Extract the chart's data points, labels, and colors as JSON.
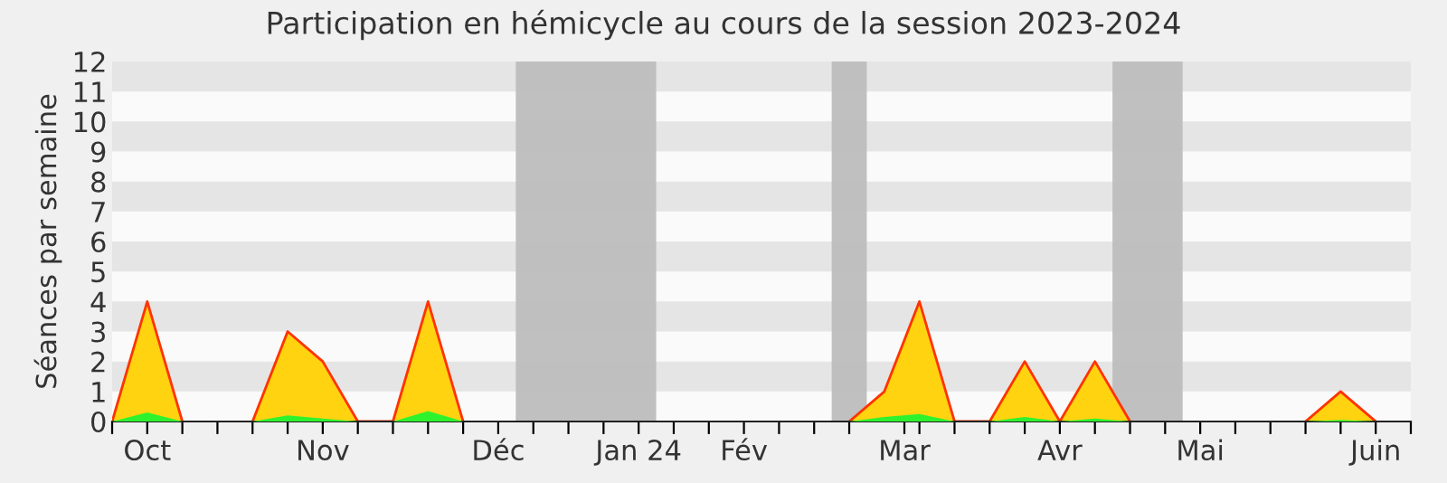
{
  "chart_data": {
    "type": "area",
    "title": "Participation en hémicycle au cours de la session 2023-2024",
    "ylabel": "Séances par semaine",
    "x": [
      "2023-09-25",
      "2023-10-02",
      "2023-10-09",
      "2023-10-16",
      "2023-10-23",
      "2023-10-30",
      "2023-11-06",
      "2023-11-13",
      "2023-11-20",
      "2023-11-27",
      "2023-12-04",
      "2023-12-11",
      "2023-12-18",
      "2023-12-25",
      "2024-01-01",
      "2024-01-08",
      "2024-01-15",
      "2024-01-22",
      "2024-01-29",
      "2024-02-05",
      "2024-02-12",
      "2024-02-19",
      "2024-02-26",
      "2024-03-04",
      "2024-03-11",
      "2024-03-18",
      "2024-03-25",
      "2024-04-01",
      "2024-04-08",
      "2024-04-15",
      "2024-04-22",
      "2024-04-29",
      "2024-05-06",
      "2024-05-13",
      "2024-05-20",
      "2024-05-27",
      "2024-06-03"
    ],
    "series": [
      {
        "color": "#ffd30f",
        "values": [
          0,
          4,
          0,
          null,
          0,
          3,
          2,
          0,
          0,
          4,
          0,
          null,
          null,
          null,
          null,
          null,
          null,
          null,
          null,
          null,
          null,
          0,
          1,
          4,
          0,
          0,
          2,
          0,
          2,
          0,
          null,
          null,
          null,
          null,
          0,
          1,
          0
        ]
      },
      {
        "color": "#2ef22e",
        "values": [
          0,
          0.3,
          0,
          null,
          0,
          0.2,
          0.1,
          0,
          0,
          0.35,
          0,
          null,
          null,
          null,
          null,
          null,
          null,
          null,
          null,
          null,
          null,
          0,
          0.15,
          0.25,
          0,
          0,
          0.15,
          0,
          0.1,
          0,
          null,
          null,
          null,
          null,
          0,
          0.05,
          0
        ]
      }
    ],
    "xlim": [
      "2023-09-25",
      "2024-06-10"
    ],
    "xticks": [
      {
        "value": "2023-09-25",
        "label": null
      },
      {
        "value": "2023-10-02",
        "label": "Oct"
      },
      {
        "value": "2023-10-09",
        "label": null
      },
      {
        "value": "2023-10-16",
        "label": null
      },
      {
        "value": "2023-10-23",
        "label": null
      },
      {
        "value": "2023-10-30",
        "label": null
      },
      {
        "value": "2023-11-06",
        "label": "Nov"
      },
      {
        "value": "2023-11-13",
        "label": null
      },
      {
        "value": "2023-11-20",
        "label": null
      },
      {
        "value": "2023-11-27",
        "label": null
      },
      {
        "value": "2023-12-04",
        "label": null
      },
      {
        "value": "2023-12-11",
        "label": "Déc"
      },
      {
        "value": "2023-12-18",
        "label": null
      },
      {
        "value": "2023-12-25",
        "label": null
      },
      {
        "value": "2024-01-01",
        "label": null
      },
      {
        "value": "2024-01-08",
        "label": "Jan 24"
      },
      {
        "value": "2024-01-15",
        "label": null
      },
      {
        "value": "2024-01-22",
        "label": null
      },
      {
        "value": "2024-01-29",
        "label": "Fév"
      },
      {
        "value": "2024-02-05",
        "label": null
      },
      {
        "value": "2024-02-12",
        "label": null
      },
      {
        "value": "2024-02-19",
        "label": null
      },
      {
        "value": "2024-03-01",
        "label": "Mar"
      },
      {
        "value": "2024-03-04",
        "label": null
      },
      {
        "value": "2024-03-11",
        "label": null
      },
      {
        "value": "2024-03-18",
        "label": null
      },
      {
        "value": "2024-03-25",
        "label": null
      },
      {
        "value": "2024-04-01",
        "label": "Avr"
      },
      {
        "value": "2024-04-08",
        "label": null
      },
      {
        "value": "2024-04-15",
        "label": null
      },
      {
        "value": "2024-04-22",
        "label": null
      },
      {
        "value": "2024-04-29",
        "label": "Mai"
      },
      {
        "value": "2024-05-06",
        "label": null
      },
      {
        "value": "2024-05-13",
        "label": null
      },
      {
        "value": "2024-05-20",
        "label": null
      },
      {
        "value": "2024-05-27",
        "label": null
      },
      {
        "value": "2024-06-03",
        "label": "Juin"
      },
      {
        "value": "2024-06-10",
        "label": null
      }
    ],
    "ylim": [
      0,
      12
    ],
    "yticks": [
      0,
      1,
      2,
      3,
      4,
      5,
      6,
      7,
      8,
      9,
      10,
      11,
      12
    ],
    "bands": [
      {
        "axis": "x",
        "from": "2023-12-14T12:00",
        "to": "2024-01-11T12:00",
        "color": "#bdbdbd"
      },
      {
        "axis": "x",
        "from": "2024-02-15T12:00",
        "to": "2024-02-22T12:00",
        "color": "#bdbdbd"
      },
      {
        "axis": "x",
        "from": "2024-04-11T12:00",
        "to": "2024-04-25T12:00",
        "color": "#bdbdbd"
      }
    ]
  }
}
